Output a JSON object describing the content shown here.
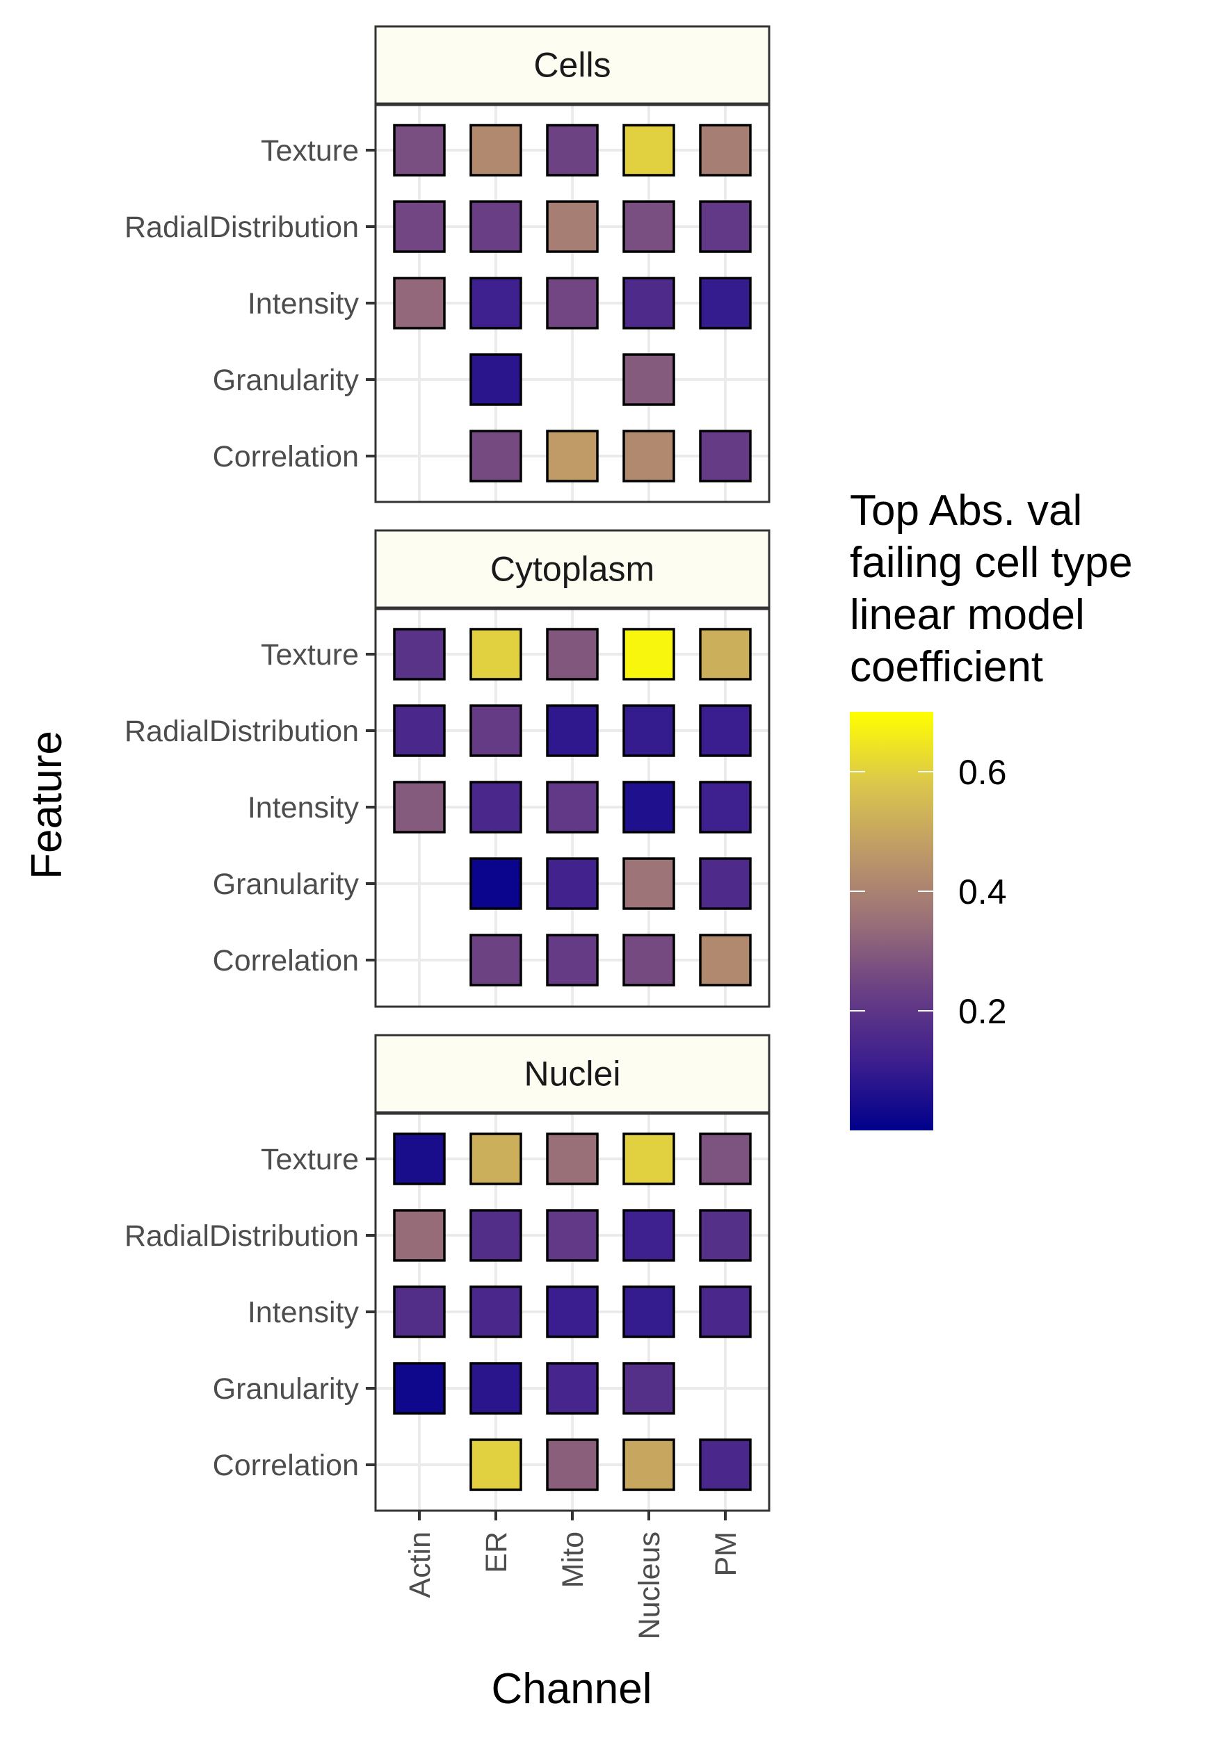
{
  "chart_data": {
    "type": "heatmap",
    "facets": [
      {
        "name": "Cells",
        "cells": [
          {
            "feature": "Texture",
            "channel": "Actin",
            "value": 0.27
          },
          {
            "feature": "Texture",
            "channel": "ER",
            "value": 0.42
          },
          {
            "feature": "Texture",
            "channel": "Mito",
            "value": 0.24
          },
          {
            "feature": "Texture",
            "channel": "Nucleus",
            "value": 0.6
          },
          {
            "feature": "Texture",
            "channel": "PM",
            "value": 0.39
          },
          {
            "feature": "RadialDistribution",
            "channel": "Actin",
            "value": 0.25
          },
          {
            "feature": "RadialDistribution",
            "channel": "ER",
            "value": 0.23
          },
          {
            "feature": "RadialDistribution",
            "channel": "Mito",
            "value": 0.39
          },
          {
            "feature": "RadialDistribution",
            "channel": "Nucleus",
            "value": 0.27
          },
          {
            "feature": "RadialDistribution",
            "channel": "PM",
            "value": 0.21
          },
          {
            "feature": "Intensity",
            "channel": "Actin",
            "value": 0.33
          },
          {
            "feature": "Intensity",
            "channel": "ER",
            "value": 0.12
          },
          {
            "feature": "Intensity",
            "channel": "Mito",
            "value": 0.25
          },
          {
            "feature": "Intensity",
            "channel": "Nucleus",
            "value": 0.16
          },
          {
            "feature": "Intensity",
            "channel": "PM",
            "value": 0.1
          },
          {
            "feature": "Granularity",
            "channel": "ER",
            "value": 0.08
          },
          {
            "feature": "Granularity",
            "channel": "Nucleus",
            "value": 0.3
          },
          {
            "feature": "Correlation",
            "channel": "ER",
            "value": 0.26
          },
          {
            "feature": "Correlation",
            "channel": "Mito",
            "value": 0.47
          },
          {
            "feature": "Correlation",
            "channel": "Nucleus",
            "value": 0.42
          },
          {
            "feature": "Correlation",
            "channel": "PM",
            "value": 0.22
          }
        ]
      },
      {
        "name": "Cytoplasm",
        "cells": [
          {
            "feature": "Texture",
            "channel": "Actin",
            "value": 0.19
          },
          {
            "feature": "Texture",
            "channel": "ER",
            "value": 0.6
          },
          {
            "feature": "Texture",
            "channel": "Mito",
            "value": 0.29
          },
          {
            "feature": "Texture",
            "channel": "Nucleus",
            "value": 0.68
          },
          {
            "feature": "Texture",
            "channel": "PM",
            "value": 0.52
          },
          {
            "feature": "RadialDistribution",
            "channel": "Actin",
            "value": 0.15
          },
          {
            "feature": "RadialDistribution",
            "channel": "ER",
            "value": 0.22
          },
          {
            "feature": "RadialDistribution",
            "channel": "Mito",
            "value": 0.09
          },
          {
            "feature": "RadialDistribution",
            "channel": "Nucleus",
            "value": 0.1
          },
          {
            "feature": "RadialDistribution",
            "channel": "PM",
            "value": 0.11
          },
          {
            "feature": "Intensity",
            "channel": "Actin",
            "value": 0.3
          },
          {
            "feature": "Intensity",
            "channel": "ER",
            "value": 0.15
          },
          {
            "feature": "Intensity",
            "channel": "Mito",
            "value": 0.21
          },
          {
            "feature": "Intensity",
            "channel": "Nucleus",
            "value": 0.06
          },
          {
            "feature": "Intensity",
            "channel": "PM",
            "value": 0.12
          },
          {
            "feature": "Granularity",
            "channel": "ER",
            "value": 0.02
          },
          {
            "feature": "Granularity",
            "channel": "Mito",
            "value": 0.13
          },
          {
            "feature": "Granularity",
            "channel": "Nucleus",
            "value": 0.36
          },
          {
            "feature": "Granularity",
            "channel": "PM",
            "value": 0.16
          },
          {
            "feature": "Correlation",
            "channel": "ER",
            "value": 0.24
          },
          {
            "feature": "Correlation",
            "channel": "Mito",
            "value": 0.22
          },
          {
            "feature": "Correlation",
            "channel": "Nucleus",
            "value": 0.26
          },
          {
            "feature": "Correlation",
            "channel": "PM",
            "value": 0.42
          }
        ]
      },
      {
        "name": "Nuclei",
        "cells": [
          {
            "feature": "Texture",
            "channel": "Actin",
            "value": 0.05
          },
          {
            "feature": "Texture",
            "channel": "ER",
            "value": 0.52
          },
          {
            "feature": "Texture",
            "channel": "Mito",
            "value": 0.35
          },
          {
            "feature": "Texture",
            "channel": "Nucleus",
            "value": 0.6
          },
          {
            "feature": "Texture",
            "channel": "PM",
            "value": 0.28
          },
          {
            "feature": "RadialDistribution",
            "channel": "Actin",
            "value": 0.34
          },
          {
            "feature": "RadialDistribution",
            "channel": "ER",
            "value": 0.17
          },
          {
            "feature": "RadialDistribution",
            "channel": "Mito",
            "value": 0.21
          },
          {
            "feature": "RadialDistribution",
            "channel": "Nucleus",
            "value": 0.12
          },
          {
            "feature": "RadialDistribution",
            "channel": "PM",
            "value": 0.18
          },
          {
            "feature": "Intensity",
            "channel": "Actin",
            "value": 0.17
          },
          {
            "feature": "Intensity",
            "channel": "ER",
            "value": 0.15
          },
          {
            "feature": "Intensity",
            "channel": "Mito",
            "value": 0.11
          },
          {
            "feature": "Intensity",
            "channel": "Nucleus",
            "value": 0.1
          },
          {
            "feature": "Intensity",
            "channel": "PM",
            "value": 0.15
          },
          {
            "feature": "Granularity",
            "channel": "Actin",
            "value": 0.03
          },
          {
            "feature": "Granularity",
            "channel": "ER",
            "value": 0.08
          },
          {
            "feature": "Granularity",
            "channel": "Mito",
            "value": 0.14
          },
          {
            "feature": "Granularity",
            "channel": "Nucleus",
            "value": 0.18
          },
          {
            "feature": "Correlation",
            "channel": "ER",
            "value": 0.6
          },
          {
            "feature": "Correlation",
            "channel": "Mito",
            "value": 0.31
          },
          {
            "feature": "Correlation",
            "channel": "Nucleus",
            "value": 0.5
          },
          {
            "feature": "Correlation",
            "channel": "PM",
            "value": 0.15
          }
        ]
      }
    ],
    "channels": [
      "Actin",
      "ER",
      "Mito",
      "Nucleus",
      "PM"
    ],
    "features": [
      "Texture",
      "RadialDistribution",
      "Intensity",
      "Granularity",
      "Correlation"
    ],
    "xlabel": "Channel",
    "ylabel": "Feature",
    "legend": {
      "title_lines": [
        "Top Abs. val",
        "failing cell type",
        "linear model",
        "coefficient"
      ],
      "min": 0.0,
      "max": 0.7,
      "ticks": [
        0.2,
        0.4,
        0.6
      ],
      "tick_labels": [
        "0.2",
        "0.4",
        "0.6"
      ],
      "placement": "right"
    },
    "colorscale": [
      "#00008B",
      "#3D1F8E",
      "#6A3F84",
      "#9A7078",
      "#BF9A68",
      "#DCC84A",
      "#FFFF00"
    ],
    "grid": true
  }
}
